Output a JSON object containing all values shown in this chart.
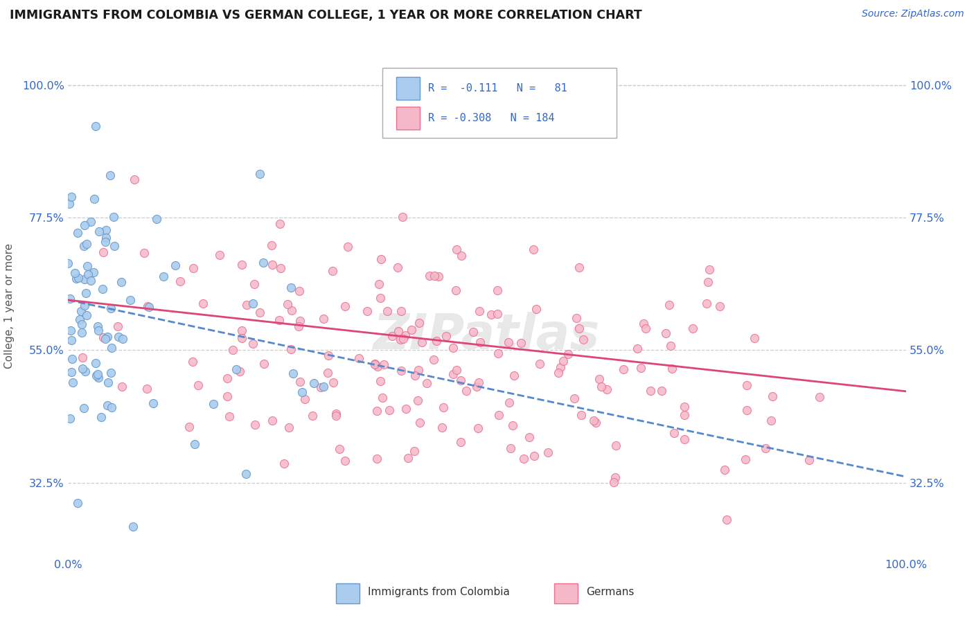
{
  "title": "IMMIGRANTS FROM COLOMBIA VS GERMAN COLLEGE, 1 YEAR OR MORE CORRELATION CHART",
  "source_text": "Source: ZipAtlas.com",
  "ylabel": "College, 1 year or more",
  "xlim": [
    0.0,
    1.0
  ],
  "ylim": [
    0.2,
    1.05
  ],
  "ytick_positions": [
    0.325,
    0.55,
    0.775,
    1.0
  ],
  "ytick_labels": [
    "32.5%",
    "55.0%",
    "77.5%",
    "100.0%"
  ],
  "color_colombia": "#aaccee",
  "color_colombia_edge": "#6699cc",
  "color_german": "#f5b8c8",
  "color_german_edge": "#e87090",
  "color_text_blue": "#3366cc",
  "color_trend_colombia": "#5588cc",
  "color_trend_german": "#dd4477",
  "grid_color": "#cccccc",
  "bg_color": "#ffffff",
  "legend_text1": "R =  -0.111   N =   81",
  "legend_text2": "R = -0.308   N = 184",
  "watermark": "ZIPatlas"
}
